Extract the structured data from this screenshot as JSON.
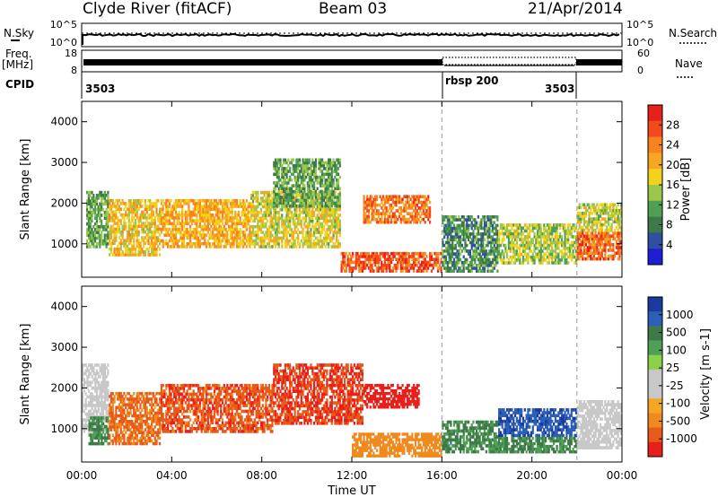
{
  "header": {
    "station": "Clyde River (fitACF)",
    "beam": "Beam 03",
    "date": "21/Apr/2014"
  },
  "status_panel": {
    "nsky_label": "N.Sky",
    "nsky_ticks": [
      "10^5",
      "10^0"
    ],
    "nsearch_label": "N.Search",
    "nsearch_ticks": [
      "10^5",
      "10^0"
    ],
    "freq_label": "Freq.",
    "freq_unit": "[MHz]",
    "freq_ticks": [
      "18",
      "8"
    ],
    "nave_label": "Nave",
    "nave_ticks": [
      "60",
      "0"
    ],
    "cpid_label": "CPID",
    "cpid_segments": [
      {
        "label": "3503",
        "start_hour": 0,
        "end_hour": 16
      },
      {
        "label": "rbsp 200",
        "start_hour": 16,
        "end_hour": 22
      },
      {
        "label": "3503",
        "start_hour": 22,
        "end_hour": 24
      }
    ]
  },
  "power_colorbar": {
    "label": "Power [dB]",
    "ticks": [
      "28",
      "24",
      "20",
      "16",
      "12",
      "8",
      "4"
    ],
    "colors": [
      "#e8201c",
      "#f24a1a",
      "#f7821e",
      "#f5a623",
      "#f2d21a",
      "#9bc84a",
      "#4fa055",
      "#3e7a48",
      "#2e4fa2",
      "#1e1ed2"
    ]
  },
  "velocity_colorbar": {
    "label": "Velocity [m s-1]",
    "ticks": [
      "1000",
      "500",
      "100",
      "25",
      "-25",
      "-100",
      "-500",
      "-1000"
    ],
    "colors": [
      "#1a3aa0",
      "#2b5fb8",
      "#3e7a48",
      "#4fa055",
      "#8cd14a",
      "#c8c8c8",
      "#c8c8c8",
      "#f5a623",
      "#f08a1e",
      "#e85a1a",
      "#e8201c"
    ]
  },
  "chart_data": [
    {
      "type": "heatmap",
      "panel": "power",
      "xlabel": "",
      "ylabel": "Slant Range [km]",
      "xlim": [
        0,
        24
      ],
      "ylim": [
        180,
        4500
      ],
      "yticks": [
        1000,
        2000,
        3000,
        4000
      ],
      "xticks": [
        0,
        4,
        8,
        12,
        16,
        20,
        24
      ],
      "vertical_markers_hour": [
        16,
        22
      ],
      "regions": [
        {
          "x": [
            0.2,
            1.2
          ],
          "y": [
            900,
            2300
          ],
          "value": 10
        },
        {
          "x": [
            1.2,
            3.5
          ],
          "y": [
            700,
            2100
          ],
          "value": 18
        },
        {
          "x": [
            3.5,
            7.5
          ],
          "y": [
            900,
            2100
          ],
          "value": 20
        },
        {
          "x": [
            7.5,
            11.5
          ],
          "y": [
            900,
            2300
          ],
          "value": 16
        },
        {
          "x": [
            8.5,
            11.5
          ],
          "y": [
            1900,
            3100
          ],
          "value": 10
        },
        {
          "x": [
            12.5,
            15.5
          ],
          "y": [
            1500,
            2200
          ],
          "value": 24
        },
        {
          "x": [
            11.5,
            16
          ],
          "y": [
            300,
            800
          ],
          "value": 26
        },
        {
          "x": [
            16,
            18.5
          ],
          "y": [
            300,
            1700
          ],
          "value": 8
        },
        {
          "x": [
            18.5,
            22
          ],
          "y": [
            500,
            1500
          ],
          "value": 14
        },
        {
          "x": [
            22,
            24
          ],
          "y": [
            600,
            1300
          ],
          "value": 25
        },
        {
          "x": [
            22,
            24
          ],
          "y": [
            1300,
            2000
          ],
          "value": 15
        }
      ]
    },
    {
      "type": "heatmap",
      "panel": "velocity",
      "xlabel": "Time UT",
      "ylabel": "Slant Range [km]",
      "xlim": [
        0,
        24
      ],
      "ylim": [
        180,
        4500
      ],
      "yticks": [
        1000,
        2000,
        3000,
        4000
      ],
      "xticks": [
        0,
        4,
        8,
        12,
        16,
        20,
        24
      ],
      "xticklabels": [
        "00:00",
        "04:00",
        "08:00",
        "12:00",
        "16:00",
        "20:00",
        "00:00"
      ],
      "vertical_markers_hour": [
        16,
        22
      ],
      "regions": [
        {
          "x": [
            0,
            1.2
          ],
          "y": [
            900,
            2600
          ],
          "value": 0
        },
        {
          "x": [
            0.3,
            1.2
          ],
          "y": [
            600,
            1300
          ],
          "value": 300
        },
        {
          "x": [
            1.2,
            3.5
          ],
          "y": [
            600,
            1900
          ],
          "value": -300
        },
        {
          "x": [
            3.5,
            8.5
          ],
          "y": [
            900,
            2100
          ],
          "value": -400
        },
        {
          "x": [
            8.5,
            12.5
          ],
          "y": [
            1100,
            2600
          ],
          "value": -500
        },
        {
          "x": [
            12.5,
            15
          ],
          "y": [
            1500,
            2100
          ],
          "value": -700
        },
        {
          "x": [
            12,
            16
          ],
          "y": [
            300,
            900
          ],
          "value": -150
        },
        {
          "x": [
            16,
            18.5
          ],
          "y": [
            400,
            1200
          ],
          "value": 300
        },
        {
          "x": [
            18.5,
            22
          ],
          "y": [
            800,
            1500
          ],
          "value": 900
        },
        {
          "x": [
            18.5,
            22
          ],
          "y": [
            400,
            800
          ],
          "value": 300
        },
        {
          "x": [
            22,
            24
          ],
          "y": [
            500,
            1700
          ],
          "value": 0
        }
      ]
    }
  ]
}
